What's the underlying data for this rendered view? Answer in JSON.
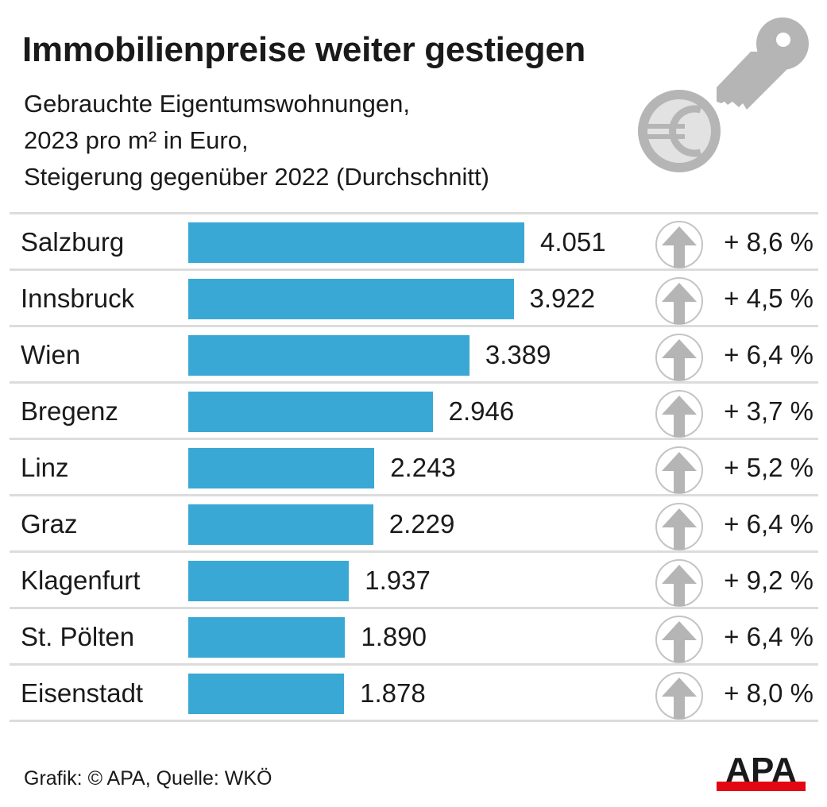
{
  "header": {
    "title": "Immobilienpreise weiter gestiegen",
    "subtitle_lines": [
      "Gebrauchte Eigentumswohnungen,",
      "2023 pro m² in Euro,",
      "Steigerung gegenüber 2022 (Durchschnitt)"
    ]
  },
  "icons": {
    "decoration": [
      "key-icon",
      "euro-coin-icon"
    ],
    "row_indicator": "arrow-up-circle-icon"
  },
  "colors": {
    "bar": "#3aa8d4",
    "icon_gray": "#b5b5b5",
    "divider": "#dcdcdc",
    "logo_red": "#e30613",
    "logo_black": "#1a1a1a"
  },
  "chart_data": {
    "type": "bar",
    "orientation": "horizontal",
    "title": "Immobilienpreise weiter gestiegen",
    "subtitle": "Gebrauchte Eigentumswohnungen, 2023 pro m² in Euro, Steigerung gegenüber 2022 (Durchschnitt)",
    "xlabel": "",
    "ylabel": "",
    "grid": false,
    "legend": "none",
    "categories": [
      "Salzburg",
      "Innsbruck",
      "Wien",
      "Bregenz",
      "Linz",
      "Graz",
      "Klagenfurt",
      "St. Pölten",
      "Eisenstadt"
    ],
    "values": [
      4051,
      3922,
      3389,
      2946,
      2243,
      2229,
      1937,
      1890,
      1878
    ],
    "value_labels": [
      "4.051",
      "3.922",
      "3.389",
      "2.946",
      "2.243",
      "2.229",
      "1.937",
      "1.890",
      "1.878"
    ],
    "change_pct": [
      8.6,
      4.5,
      6.4,
      3.7,
      5.2,
      6.4,
      9.2,
      6.4,
      8.0
    ],
    "change_labels": [
      "+ 8,6 %",
      "+ 4,5 %",
      "+ 6,4 %",
      "+ 3,7 %",
      "+ 5,2 %",
      "+ 6,4 %",
      "+ 9,2 %",
      "+ 6,4 %",
      "+ 8,0 %"
    ],
    "xlim": [
      0,
      4051
    ]
  },
  "footer": {
    "credit": "Grafik: © APA, Quelle: WKÖ",
    "logo": "APA"
  }
}
